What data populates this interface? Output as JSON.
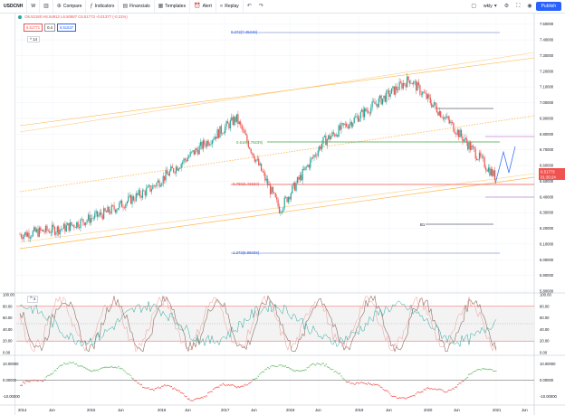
{
  "toolbar": {
    "symbol": "USDCNH",
    "interval": "W",
    "compare": "Compare",
    "indicators": "Indicators",
    "financials": "Financials",
    "templates": "Templates",
    "alert": "Alert",
    "replay": "Replay",
    "watchlist": "wkly",
    "publish": "Publish",
    "colors": {
      "accent": "#2962ff"
    }
  },
  "legend": {
    "ohlc": "O6.52180 H6.54912 L6.50687 C6.51773 -0.01377 (-0.21%)",
    "sell_price": "6.51771",
    "spread": "0.4",
    "buy_price": "6.51637",
    "collapse": "^ 14"
  },
  "price_axis": {
    "ticks": [
      "7.50000",
      "7.40000",
      "7.30000",
      "7.20000",
      "7.10000",
      "7.00000",
      "6.90000",
      "6.80000",
      "6.70000",
      "6.60000",
      "6.50000",
      "6.40000",
      "6.30000",
      "6.20000",
      "6.10000",
      "6.00000",
      "5.90000",
      "5.80000"
    ],
    "current_price": "6.51773",
    "countdown": "01:30:24"
  },
  "fib_labels": {
    "f0272": "0.272(7.45246)",
    "f0618": "0.618(6.79239)",
    "f0786": "0.786(6.43820)",
    "f1272": "1.272(5.95026)",
    "marker_b": "B1"
  },
  "stoch_axis": [
    "100.00",
    "80.00",
    "60.00",
    "40.00",
    "20.00",
    "0.00"
  ],
  "stoch_label": "2",
  "osc_axis": [
    "10.00000",
    "0.00000",
    "-10.00000"
  ],
  "time_axis": [
    "2014",
    "Jun",
    "2015",
    "Jun",
    "2016",
    "Jun",
    "2017",
    "Jun",
    "2018",
    "Jun",
    "2019",
    "Jun",
    "2020",
    "Jun",
    "2021",
    "Jun"
  ],
  "chart_data": {
    "type": "candlestick",
    "symbol": "USDCNH",
    "x": [
      "2014",
      "2015",
      "2016",
      "2017",
      "2018",
      "2019",
      "2020",
      "2021"
    ],
    "approx_close_path": [
      6.16,
      6.2,
      6.3,
      6.45,
      6.68,
      6.9,
      6.32,
      6.75,
      6.95,
      7.15,
      6.85,
      6.52
    ],
    "ylim": [
      5.8,
      7.55
    ]
  }
}
